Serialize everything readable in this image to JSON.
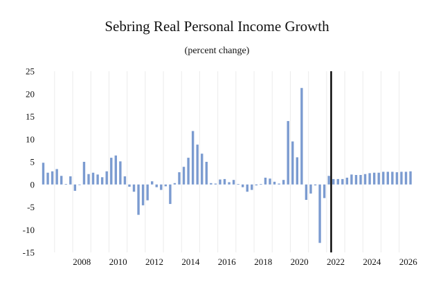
{
  "chart_data": {
    "type": "bar",
    "title": "Sebring Real Personal Income Growth",
    "subtitle": "(percent change)",
    "xlabel": "",
    "ylabel": "",
    "ylim": [
      -15,
      25
    ],
    "yticks": [
      25,
      20,
      15,
      10,
      5,
      0,
      -5,
      -10,
      -15
    ],
    "xticks": [
      "2008",
      "2010",
      "2012",
      "2014",
      "2016",
      "2018",
      "2020",
      "2022",
      "2024",
      "2026"
    ],
    "grid": "vertical",
    "forecast_divider": "2022 Q2",
    "bar_color": "#7b9bd0",
    "divider_color": "#000000",
    "categories": [
      "2006 Q2",
      "2006 Q3",
      "2006 Q4",
      "2007 Q1",
      "2007 Q2",
      "2007 Q3",
      "2007 Q4",
      "2008 Q1",
      "2008 Q2",
      "2008 Q3",
      "2008 Q4",
      "2009 Q1",
      "2009 Q2",
      "2009 Q3",
      "2009 Q4",
      "2010 Q1",
      "2010 Q2",
      "2010 Q3",
      "2010 Q4",
      "2011 Q1",
      "2011 Q2",
      "2011 Q3",
      "2011 Q4",
      "2012 Q1",
      "2012 Q2",
      "2012 Q3",
      "2012 Q4",
      "2013 Q1",
      "2013 Q2",
      "2013 Q3",
      "2013 Q4",
      "2014 Q1",
      "2014 Q2",
      "2014 Q3",
      "2014 Q4",
      "2015 Q1",
      "2015 Q2",
      "2015 Q3",
      "2015 Q4",
      "2016 Q1",
      "2016 Q2",
      "2016 Q3",
      "2016 Q4",
      "2017 Q1",
      "2017 Q2",
      "2017 Q3",
      "2017 Q4",
      "2018 Q1",
      "2018 Q2",
      "2018 Q3",
      "2018 Q4",
      "2019 Q1",
      "2019 Q2",
      "2019 Q3",
      "2019 Q4",
      "2020 Q1",
      "2020 Q2",
      "2020 Q3",
      "2020 Q4",
      "2021 Q1",
      "2021 Q2",
      "2021 Q3",
      "2021 Q4",
      "2022 Q1",
      "2022 Q2",
      "2022 Q3",
      "2022 Q4",
      "2023 Q1",
      "2023 Q2",
      "2023 Q3",
      "2023 Q4",
      "2024 Q1",
      "2024 Q2",
      "2024 Q3",
      "2024 Q4",
      "2025 Q1",
      "2025 Q2",
      "2025 Q3",
      "2025 Q4",
      "2026 Q1",
      "2026 Q2",
      "2026 Q3"
    ],
    "values": [
      4.8,
      2.6,
      2.9,
      3.4,
      1.9,
      0.1,
      1.8,
      -1.4,
      -0.1,
      5.0,
      2.3,
      2.6,
      2.2,
      1.6,
      2.9,
      5.9,
      6.4,
      5.1,
      1.8,
      -0.5,
      -1.6,
      -6.7,
      -4.6,
      -3.5,
      0.7,
      -0.6,
      -1.2,
      -0.4,
      -4.3,
      0.3,
      2.7,
      3.9,
      5.9,
      11.8,
      8.8,
      6.8,
      5.0,
      0.3,
      0.2,
      1.1,
      1.2,
      0.5,
      1.0,
      0.1,
      -0.6,
      -1.6,
      -1.2,
      -0.2,
      0.1,
      1.5,
      1.3,
      0.6,
      0.2,
      1.0,
      14.0,
      9.5,
      6.0,
      21.3,
      -3.4,
      -2.0,
      -0.2,
      -12.9,
      -3.0,
      1.9,
      1.2,
      1.2,
      1.2,
      1.5,
      2.2,
      2.1,
      2.1,
      2.3,
      2.5,
      2.6,
      2.6,
      2.8,
      2.8,
      2.8,
      2.7,
      2.8,
      2.8,
      2.9
    ]
  }
}
